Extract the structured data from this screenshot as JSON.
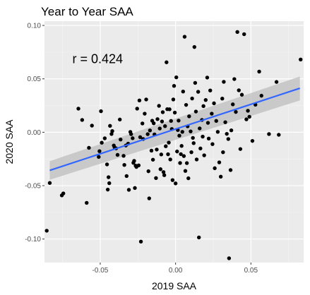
{
  "chart_data": {
    "type": "scatter",
    "title": "Year to Year SAA",
    "xlabel": "2019 SAA",
    "ylabel": "2020 SAA",
    "xlim": [
      -0.087,
      0.085
    ],
    "ylim": [
      -0.122,
      0.104
    ],
    "x_ticks": [
      -0.05,
      0.0,
      0.05
    ],
    "x_tick_labels": [
      "-0.05",
      "0.00",
      "0.05"
    ],
    "y_ticks": [
      -0.1,
      -0.05,
      0.0,
      0.05,
      0.1
    ],
    "y_tick_labels": [
      "-0.10",
      "-0.05",
      "0.00",
      "0.05",
      "0.10"
    ],
    "grid": true,
    "annotation": "r = 0.424",
    "fit": {
      "type": "linear",
      "x": [
        -0.0835,
        0.0825
      ],
      "y": [
        -0.0357,
        0.0412
      ],
      "ci_lower": [
        -0.0445,
        0.0298
      ],
      "ci_upper": [
        -0.0271,
        0.0522
      ]
    },
    "points": [
      [
        -0.0835,
        -0.0475
      ],
      [
        -0.0855,
        -0.0922
      ],
      [
        -0.0745,
        -0.0573
      ],
      [
        -0.0755,
        -0.0591
      ],
      [
        -0.0645,
        0.0221
      ],
      [
        -0.062,
        0.0115
      ],
      [
        -0.059,
        -0.0661
      ],
      [
        -0.0575,
        -0.0146
      ],
      [
        -0.0555,
        0.0062
      ],
      [
        -0.051,
        -0.0231
      ],
      [
        -0.0505,
        -0.0177
      ],
      [
        -0.049,
        -0.0098
      ],
      [
        -0.0495,
        0.0197
      ],
      [
        -0.047,
        -0.0057
      ],
      [
        -0.0455,
        -0.0301
      ],
      [
        -0.0445,
        -0.0421
      ],
      [
        -0.045,
        -0.0537
      ],
      [
        -0.044,
        -0.0477
      ],
      [
        -0.0435,
        0.006
      ],
      [
        -0.0425,
        -0.0016
      ],
      [
        -0.042,
        0.0011
      ],
      [
        -0.041,
        -0.0124
      ],
      [
        -0.0405,
        -0.0142
      ],
      [
        -0.0395,
        -0.0151
      ],
      [
        -0.0385,
        -0.0212
      ],
      [
        -0.037,
        0.0119
      ],
      [
        -0.0365,
        -0.0068
      ],
      [
        -0.0345,
        -0.0221
      ],
      [
        -0.034,
        -0.0306
      ],
      [
        -0.033,
        -0.0124
      ],
      [
        -0.0325,
        -0.041
      ],
      [
        -0.0315,
        -0.0107
      ],
      [
        -0.031,
        -0.0539
      ],
      [
        -0.03,
        0.0003
      ],
      [
        -0.0295,
        -0.0018
      ],
      [
        -0.0285,
        -0.0056
      ],
      [
        -0.028,
        -0.0286
      ],
      [
        -0.0275,
        -0.0268
      ],
      [
        -0.027,
        -0.0522
      ],
      [
        -0.0265,
        -0.0313
      ],
      [
        -0.026,
        -0.0325
      ],
      [
        -0.0255,
        0.0221
      ],
      [
        -0.0245,
        -0.031
      ],
      [
        -0.024,
        0.0298
      ],
      [
        -0.0235,
        -0.0046
      ],
      [
        -0.023,
        -0.1024
      ],
      [
        -0.022,
        0.0082
      ],
      [
        -0.0215,
        -0.0063
      ],
      [
        -0.0205,
        0.0174
      ],
      [
        -0.0195,
        0.0307
      ],
      [
        -0.0185,
        -0.0018
      ],
      [
        -0.018,
        -0.0365
      ],
      [
        -0.0175,
        -0.0619
      ],
      [
        -0.017,
        0.0017
      ],
      [
        -0.016,
        -0.0172
      ],
      [
        -0.0155,
        0.0108
      ],
      [
        -0.015,
        -0.0257
      ],
      [
        -0.0145,
        0.0084
      ],
      [
        -0.014,
        -0.002
      ],
      [
        -0.013,
        -0.0429
      ],
      [
        -0.0125,
        -0.0162
      ],
      [
        -0.012,
        0.0123
      ],
      [
        -0.011,
        0.0247
      ],
      [
        -0.0105,
        0.0035
      ],
      [
        -0.01,
        -0.0346
      ],
      [
        -0.0095,
        -0.0208
      ],
      [
        -0.009,
        0.0101
      ],
      [
        -0.0085,
        0.0188
      ],
      [
        -0.008,
        -0.0373
      ],
      [
        -0.0075,
        -0.0402
      ],
      [
        -0.007,
        0.0057
      ],
      [
        -0.0065,
        -0.0131
      ],
      [
        -0.006,
        0.0655
      ],
      [
        -0.0055,
        0.0216
      ],
      [
        -0.005,
        -0.0206
      ],
      [
        -0.0045,
        -0.0097
      ],
      [
        -0.004,
        0.0215
      ],
      [
        -0.0035,
        -0.0255
      ],
      [
        -0.003,
        0.0106
      ],
      [
        -0.0025,
        0.003
      ],
      [
        -0.002,
        -0.0448
      ],
      [
        -0.0015,
        0.0307
      ],
      [
        -0.001,
        0.0434
      ],
      [
        -0.0005,
        0.0184
      ],
      [
        0.0,
        -0.0479
      ],
      [
        0.0005,
        0.0514
      ],
      [
        0.001,
        -0.018
      ],
      [
        0.0015,
        0.0021
      ],
      [
        0.002,
        0.0109
      ],
      [
        0.0025,
        -0.0032
      ],
      [
        0.003,
        -0.0288
      ],
      [
        0.0035,
        -0.0205
      ],
      [
        0.004,
        -0.0128
      ],
      [
        0.0045,
        0.0004
      ],
      [
        0.005,
        0.0381
      ],
      [
        0.0055,
        -0.0223
      ],
      [
        0.006,
        0.0894
      ],
      [
        0.0065,
        -0.0362
      ],
      [
        0.007,
        0.0256
      ],
      [
        0.0075,
        -0.0289
      ],
      [
        0.008,
        0.0056
      ],
      [
        0.0085,
        -0.0431
      ],
      [
        0.009,
        0.0149
      ],
      [
        0.01,
        0.0008
      ],
      [
        0.0105,
        -0.0187
      ],
      [
        0.011,
        0.0316
      ],
      [
        0.0115,
        -0.0053
      ],
      [
        0.012,
        -0.0102
      ],
      [
        0.0125,
        0.0798
      ],
      [
        0.013,
        0.0462
      ],
      [
        0.0135,
        0.0194
      ],
      [
        0.014,
        -0.0255
      ],
      [
        0.015,
        0.0379
      ],
      [
        0.0155,
        -0.0985
      ],
      [
        0.016,
        0.0036
      ],
      [
        0.0165,
        -0.0152
      ],
      [
        0.0175,
        0.0115
      ],
      [
        0.018,
        -0.0041
      ],
      [
        0.0185,
        0.0245
      ],
      [
        0.019,
        -0.0216
      ],
      [
        0.02,
        0.0302
      ],
      [
        0.021,
        0.0512
      ],
      [
        0.0215,
        0.0088
      ],
      [
        0.022,
        -0.0059
      ],
      [
        0.023,
        0.0391
      ],
      [
        0.024,
        0.0174
      ],
      [
        0.0245,
        -0.0111
      ],
      [
        0.0255,
        0.0271
      ],
      [
        0.026,
        -0.0337
      ],
      [
        0.027,
        0.0106
      ],
      [
        0.028,
        0.0004
      ],
      [
        0.029,
        -0.0282
      ],
      [
        0.03,
        -0.0416
      ],
      [
        0.031,
        0.0315
      ],
      [
        0.0315,
        -0.0187
      ],
      [
        0.032,
        0.0472
      ],
      [
        0.033,
        0.0094
      ],
      [
        0.034,
        -0.0015
      ],
      [
        0.035,
        -0.0063
      ],
      [
        0.0355,
        -0.118
      ],
      [
        0.0365,
        -0.0354
      ],
      [
        0.037,
        0.0018
      ],
      [
        0.038,
        0.0261
      ],
      [
        0.039,
        0.0498
      ],
      [
        0.04,
        0.019
      ],
      [
        0.041,
        0.0939
      ],
      [
        0.042,
        0.0393
      ],
      [
        0.043,
        -0.0157
      ],
      [
        0.044,
        0.0351
      ],
      [
        0.0455,
        0.0918
      ],
      [
        0.047,
        0.0121
      ],
      [
        0.048,
        0.0201
      ],
      [
        0.049,
        0.0145
      ],
      [
        0.051,
        -0.0081
      ],
      [
        0.053,
        0.0258
      ],
      [
        0.0555,
        0.0568
      ],
      [
        0.057,
        0.0342
      ],
      [
        0.062,
        -0.0017
      ],
      [
        0.067,
        0.0471
      ],
      [
        0.0685,
        -0.0024
      ],
      [
        0.083,
        0.0681
      ]
    ]
  }
}
